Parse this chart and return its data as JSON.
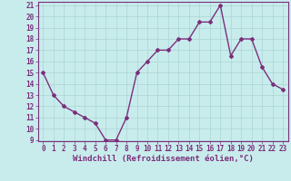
{
  "x": [
    0,
    1,
    2,
    3,
    4,
    5,
    6,
    7,
    8,
    9,
    10,
    11,
    12,
    13,
    14,
    15,
    16,
    17,
    18,
    19,
    20,
    21,
    22,
    23
  ],
  "y": [
    15,
    13,
    12,
    11.5,
    11,
    10.5,
    9,
    9,
    11,
    15,
    16,
    17,
    17,
    18,
    18,
    19.5,
    19.5,
    21,
    16.5,
    18,
    18,
    15.5,
    14,
    13.5
  ],
  "line_color": "#7b2f7b",
  "marker": "D",
  "marker_size": 2,
  "bg_color": "#c8ecec",
  "grid_color": "#aad4d4",
  "xlabel": "Windchill (Refroidissement éolien,°C)",
  "xlabel_color": "#7b2f7b",
  "tick_color": "#7b2f7b",
  "spine_color": "#7b2f7b",
  "ylim": [
    9,
    21
  ],
  "xlim": [
    -0.5,
    23.5
  ],
  "yticks": [
    9,
    10,
    11,
    12,
    13,
    14,
    15,
    16,
    17,
    18,
    19,
    20,
    21
  ],
  "xticks": [
    0,
    1,
    2,
    3,
    4,
    5,
    6,
    7,
    8,
    9,
    10,
    11,
    12,
    13,
    14,
    15,
    16,
    17,
    18,
    19,
    20,
    21,
    22,
    23
  ],
  "axis_fontsize": 5.5,
  "xlabel_fontsize": 6.5,
  "line_width": 1.0
}
